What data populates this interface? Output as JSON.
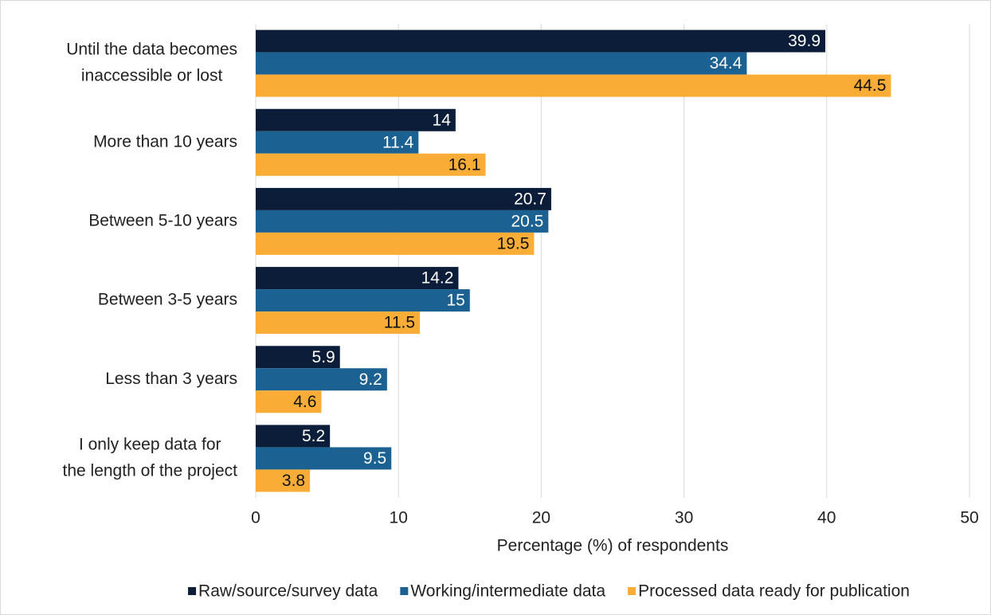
{
  "chart_data": {
    "type": "bar",
    "orientation": "horizontal",
    "categories": [
      [
        "Until the data becomes",
        "inaccessible or lost"
      ],
      [
        "More than 10 years"
      ],
      [
        "Between 5-10 years"
      ],
      [
        "Between 3-5 years"
      ],
      [
        "Less than 3 years"
      ],
      [
        "I only keep data for",
        "the length of the project"
      ]
    ],
    "series": [
      {
        "name": "Raw/source/survey data",
        "color": "#0b1d38",
        "label_color": "#ffffff",
        "values": [
          39.9,
          14,
          20.7,
          14.2,
          5.9,
          5.2
        ]
      },
      {
        "name": "Working/intermediate data",
        "color": "#1b6192",
        "label_color": "#ffffff",
        "values": [
          34.4,
          11.4,
          20.5,
          15,
          9.2,
          9.5
        ]
      },
      {
        "name": "Processed data ready for publication",
        "color": "#f9ad37",
        "label_color": "#111111",
        "values": [
          44.5,
          16.1,
          19.5,
          11.5,
          4.6,
          3.8
        ]
      }
    ],
    "xlabel": "Percentage (%) of respondents",
    "xlim": [
      0,
      50
    ],
    "xticks": [
      0,
      10,
      20,
      30,
      40,
      50
    ],
    "grid": true,
    "legend": "bottom"
  }
}
